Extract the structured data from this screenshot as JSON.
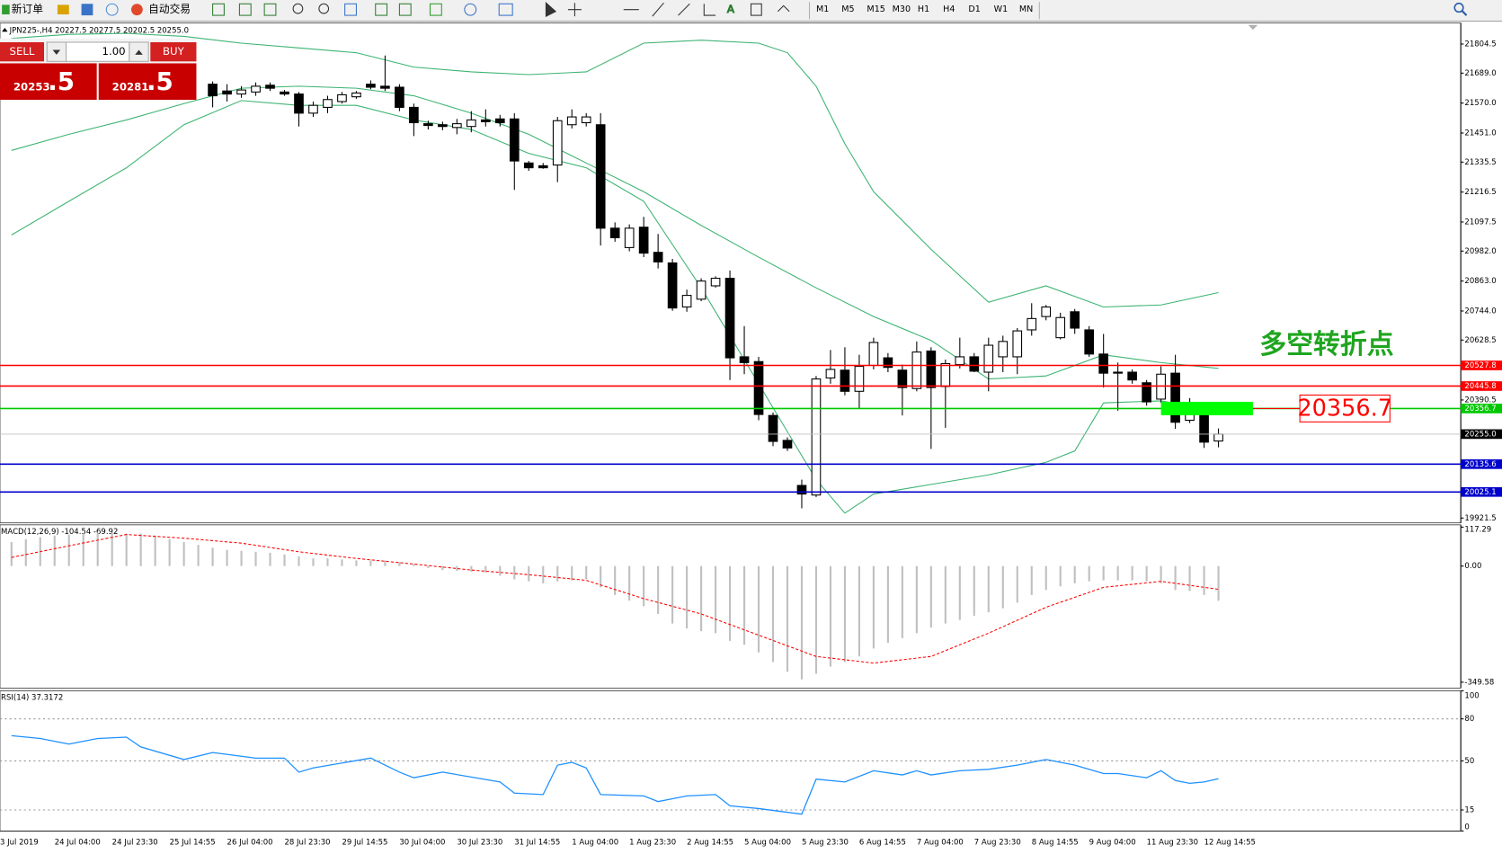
{
  "toolbar": {
    "new_order": "新订单",
    "auto_trading": "自动交易",
    "periods": [
      "M1",
      "M5",
      "M15",
      "M30",
      "H1",
      "H4",
      "D1",
      "W1",
      "MN"
    ]
  },
  "trade_panel": {
    "sell": "SELL",
    "lot": "1.00",
    "buy": "BUY",
    "bid": "20253",
    "bid_pips": ".5",
    "ask": "20281",
    "ask_pips": ".5"
  },
  "chart_data": [
    {
      "type": "candlestick",
      "title": "JPN225-,H4  20227.5 20277.5 20202.5 20255.0",
      "categories": [
        "3 Jul 2019",
        null,
        null,
        "24 Jul 04:00",
        null,
        null,
        null,
        "24 Jul 23:30",
        null,
        null,
        null,
        "25 Jul 14:55",
        null,
        null,
        null,
        "26 Jul 04:00",
        null,
        null,
        null,
        "28 Jul 23:30",
        null,
        null,
        null,
        "29 Jul 14:55",
        null,
        null,
        null,
        "30 Jul 04:00",
        null,
        null,
        null,
        "30 Jul 23:30",
        null,
        null,
        null,
        "31 Jul 14:55",
        null,
        null,
        null,
        "1 Aug 04:00",
        null,
        null,
        null,
        "1 Aug 23:30",
        null,
        null,
        null,
        "2 Aug 14:55",
        null,
        null,
        null,
        "5 Aug 04:00",
        null,
        null,
        null,
        "5 Aug 23:30",
        null,
        null,
        null,
        "6 Aug 14:55",
        null,
        null,
        null,
        "7 Aug 04:00",
        null,
        null,
        null,
        "7 Aug 23:30",
        null,
        null,
        null,
        "8 Aug 14:55",
        null,
        null,
        null,
        "9 Aug 04:00",
        null,
        null,
        null,
        "11 Aug 23:30",
        null,
        null,
        null,
        "12 Aug 14:55",
        null
      ],
      "open": [
        null,
        null,
        null,
        null,
        null,
        null,
        null,
        null,
        null,
        null,
        null,
        null,
        null,
        null,
        21645,
        21618,
        21606,
        21614,
        21641,
        21614,
        21606,
        21530,
        21553,
        21576,
        21595,
        21645,
        21637,
        21633,
        21553,
        21488,
        21484,
        21473,
        21477,
        21503,
        21507,
        21507,
        21332,
        21321,
        21324,
        21484,
        21492,
        21484,
        21073,
        20996,
        21077,
        20977,
        20935,
        20760,
        20791,
        20844,
        20874,
        20562,
        20543,
        20329,
        20230,
        20051,
        20013,
        20478,
        20509,
        20425,
        20528,
        20558,
        20509,
        20436,
        20585,
        20444,
        20531,
        20562,
        20501,
        20562,
        20562,
        20669,
        20722,
        20638,
        20741,
        20669,
        20573,
        20501,
        20501,
        20459,
        20394,
        20497,
        20310,
        20329,
        20227.5
      ],
      "high": [
        null,
        null,
        null,
        null,
        null,
        null,
        null,
        null,
        null,
        null,
        null,
        null,
        null,
        null,
        21656,
        21645,
        21637,
        21652,
        21652,
        21622,
        21614,
        21576,
        21599,
        21614,
        21618,
        21660,
        21759,
        21645,
        21568,
        21500,
        21496,
        21507,
        21538,
        21545,
        21523,
        21530,
        21340,
        21332,
        21515,
        21545,
        21530,
        21530,
        21096,
        21088,
        21118,
        21050,
        20951,
        20829,
        20874,
        20882,
        20905,
        20684,
        20562,
        20341,
        20242,
        20074,
        20486,
        20589,
        20600,
        20570,
        20638,
        20577,
        20531,
        20623,
        20600,
        20551,
        20638,
        20577,
        20638,
        20646,
        20676,
        20775,
        20768,
        20737,
        20752,
        20684,
        20653,
        20539,
        20512,
        20470,
        20524,
        20570,
        20398,
        20341,
        20277.5
      ],
      "low": [
        null,
        null,
        null,
        null,
        null,
        null,
        null,
        null,
        null,
        null,
        null,
        null,
        null,
        null,
        21553,
        21576,
        21591,
        21599,
        21618,
        21599,
        21477,
        21515,
        21530,
        21568,
        21587,
        21625,
        21618,
        21538,
        21439,
        21465,
        21462,
        21446,
        21454,
        21477,
        21477,
        21225,
        21301,
        21309,
        21256,
        21469,
        21477,
        21004,
        21019,
        20981,
        20958,
        20913,
        20745,
        20741,
        20783,
        20837,
        20470,
        20493,
        20310,
        20207,
        20188,
        19960,
        20005,
        20455,
        20409,
        20356,
        20512,
        20501,
        20329,
        20425,
        20196,
        20280,
        20516,
        20501,
        20425,
        20501,
        20493,
        20646,
        20707,
        20631,
        20653,
        20562,
        20440,
        20348,
        20455,
        20368,
        20379,
        20276,
        20299,
        20200,
        20202.5
      ],
      "close": [
        null,
        null,
        null,
        null,
        null,
        null,
        null,
        null,
        null,
        null,
        null,
        null,
        null,
        null,
        21599,
        21606,
        21622,
        21637,
        21629,
        21606,
        21530,
        21561,
        21584,
        21603,
        21610,
        21633,
        21629,
        21553,
        21492,
        21481,
        21477,
        21488,
        21503,
        21496,
        21492,
        21340,
        21313,
        21313,
        21500,
        21515,
        21515,
        21073,
        21035,
        21073,
        20974,
        20939,
        20756,
        20806,
        20863,
        20874,
        20558,
        20539,
        20333,
        20226,
        20200,
        20017,
        20474,
        20512,
        20425,
        20524,
        20619,
        20520,
        20440,
        20581,
        20440,
        20535,
        20562,
        20505,
        20608,
        20623,
        20665,
        20714,
        20760,
        20718,
        20676,
        20573,
        20497,
        20497,
        20470,
        20383,
        20493,
        20302,
        20352,
        20223,
        20255
      ],
      "bands": [
        {
          "color": "#3cb371",
          "x": [
            0,
            4,
            8,
            12,
            16,
            20,
            24,
            28,
            32,
            36,
            40,
            44,
            48,
            52,
            54,
            56,
            58,
            60,
            64,
            68,
            72,
            76,
            80,
            84
          ],
          "values": [
            21827,
            21843,
            21847,
            21835,
            21808,
            21789,
            21770,
            21713,
            21694,
            21683,
            21694,
            21808,
            21820,
            21808,
            21770,
            21637,
            21408,
            21218,
            20989,
            20779,
            20844,
            20760,
            20768,
            20817
          ]
        },
        {
          "color": "#3cb371",
          "x": [
            0,
            4,
            8,
            12,
            16,
            20,
            24,
            28,
            32,
            36,
            40,
            44,
            48,
            52,
            56,
            60,
            64,
            68,
            72,
            76,
            80,
            84
          ],
          "values": [
            21382,
            21446,
            21503,
            21568,
            21629,
            21637,
            21629,
            21599,
            21530,
            21446,
            21332,
            21218,
            21084,
            20958,
            20836,
            20722,
            20627,
            20474,
            20486,
            20570,
            20539,
            20516
          ]
        },
        {
          "color": "#3cb371",
          "x": [
            0,
            4,
            8,
            12,
            16,
            20,
            24,
            28,
            32,
            36,
            40,
            44,
            48,
            52,
            56,
            58,
            60,
            64,
            68,
            72,
            74,
            76,
            80,
            84
          ],
          "values": [
            21046,
            21180,
            21313,
            21484,
            21580,
            21561,
            21561,
            21503,
            21465,
            21370,
            21313,
            21180,
            20836,
            20455,
            20074,
            19941,
            20017,
            20055,
            20093,
            20143,
            20188,
            20379,
            20387,
            20348
          ]
        }
      ],
      "levels": [
        {
          "value": 20527.8,
          "color": "#ff0000"
        },
        {
          "value": 20445.8,
          "color": "#ff0000"
        },
        {
          "value": 20356.7,
          "color": "#00c800"
        },
        {
          "value": 20255,
          "label": "20255.0",
          "color": "#c0c0c0"
        },
        {
          "value": 20135.6,
          "color": "#0000cc"
        },
        {
          "value": 20025.1,
          "color": "#0000cc"
        }
      ],
      "annotation": {
        "text": "多空转折点",
        "color": "#1fa51f"
      },
      "ylim": [
        19902,
        21888
      ],
      "yticks": [
        21804.5,
        {
          "value": 21689,
          "label": "21689.0"
        },
        {
          "value": 21570,
          "label": "21570.0"
        },
        {
          "value": 21451,
          "label": "21451.0"
        },
        21335.5,
        21216.5,
        21097.5,
        {
          "value": 20982,
          "label": "20982.0"
        },
        {
          "value": 20863,
          "label": "20863.0"
        },
        {
          "value": 20744,
          "label": "20744.0"
        },
        20628.5,
        20390.5,
        19921.5
      ]
    },
    {
      "type": "macd",
      "title": "MACD(12,26,9) -104.54 -69.92",
      "histogram": {
        "color": "#c0c0c0",
        "values": [
          72,
          81,
          87,
          92,
          95,
          98,
          101,
          101,
          98,
          98,
          92,
          81,
          72,
          64,
          55,
          49,
          46,
          43,
          40,
          35,
          29,
          23,
          23,
          20,
          17,
          17,
          17,
          12,
          6,
          -6,
          -12,
          -14,
          -17,
          -20,
          -29,
          -40,
          -46,
          -52,
          -46,
          -43,
          -40,
          -64,
          -87,
          -104,
          -121,
          -144,
          -173,
          -188,
          -196,
          -202,
          -225,
          -237,
          -260,
          -289,
          -318,
          -341,
          -324,
          -303,
          -289,
          -272,
          -248,
          -231,
          -217,
          -202,
          -185,
          -173,
          -162,
          -150,
          -139,
          -127,
          -110,
          -87,
          -72,
          -61,
          -52,
          -46,
          -43,
          -43,
          -43,
          -46,
          -52,
          -72,
          -75,
          -87,
          -104.54
        ]
      },
      "signal": {
        "color": "#ff0000",
        "x": [
          0,
          4,
          8,
          12,
          16,
          20,
          24,
          28,
          32,
          36,
          40,
          44,
          48,
          52,
          56,
          60,
          64,
          68,
          72,
          76,
          80,
          84
        ],
        "values": [
          26,
          61,
          95,
          84,
          69,
          43,
          23,
          6,
          -12,
          -26,
          -43,
          -98,
          -144,
          -208,
          -272,
          -292,
          -272,
          -202,
          -124,
          -64,
          -46,
          -69.92
        ]
      },
      "ylim": [
        -367,
        124
      ],
      "yticks": [
        117.29,
        {
          "value": 0,
          "label": "0.00"
        },
        -349.58
      ]
    },
    {
      "type": "rsi",
      "title": "RSI(14) 37.3172",
      "series": [
        {
          "color": "#1e90ff",
          "x": [
            0,
            2,
            4,
            6,
            8,
            9,
            12,
            14,
            17,
            19,
            20,
            21,
            25,
            27,
            28,
            30,
            34,
            35,
            37,
            38,
            39,
            40,
            41,
            44,
            45,
            47,
            49,
            50,
            52,
            55,
            56,
            58,
            60,
            62,
            63,
            64,
            66,
            68,
            70,
            72,
            74,
            76,
            77,
            79,
            80,
            81,
            82,
            83,
            84
          ],
          "values": [
            68,
            66,
            62,
            66,
            67,
            60,
            51,
            56,
            52,
            52,
            42,
            45,
            52,
            42,
            38,
            42,
            35,
            27,
            26,
            47,
            49,
            45,
            26,
            25,
            21,
            25,
            26,
            18,
            16,
            12,
            37,
            35,
            43,
            40,
            43,
            40,
            43,
            44,
            47,
            51,
            47,
            41,
            41,
            38,
            43,
            36,
            34,
            35,
            37.3172
          ]
        }
      ],
      "ylim": [
        0,
        100
      ],
      "yticks": [
        100,
        80,
        50,
        15,
        0
      ]
    }
  ]
}
